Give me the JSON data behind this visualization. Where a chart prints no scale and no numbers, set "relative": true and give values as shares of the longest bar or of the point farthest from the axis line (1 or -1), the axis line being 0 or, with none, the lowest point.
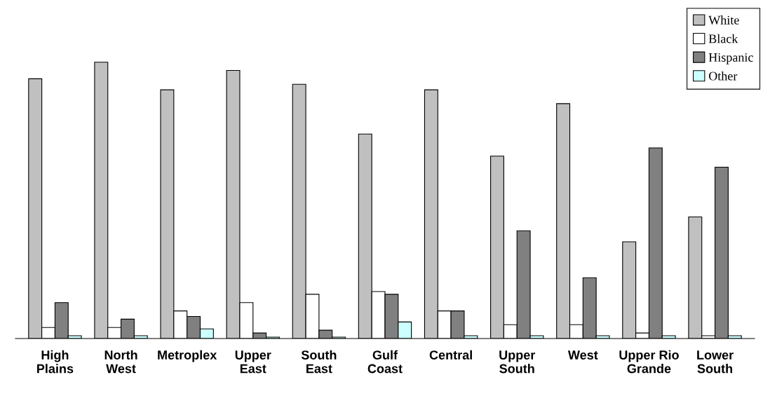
{
  "chart_data": {
    "type": "bar",
    "relative": true,
    "legend": "top right",
    "grid": false,
    "categories": [
      "High\nPlains",
      "North\nWest",
      "Metroplex",
      "Upper\nEast",
      "South\nEast",
      "Gulf\nCoast",
      "Central",
      "Upper\nSouth",
      "West",
      "Upper Rio\nGrande",
      "Lower\nSouth"
    ],
    "series": [
      {
        "name": "White",
        "color": "#c0c0c0",
        "values": [
          0.94,
          1.0,
          0.9,
          0.97,
          0.92,
          0.74,
          0.9,
          0.66,
          0.85,
          0.35,
          0.44
        ]
      },
      {
        "name": "Black",
        "color": "#ffffff",
        "values": [
          0.04,
          0.04,
          0.1,
          0.13,
          0.16,
          0.17,
          0.1,
          0.05,
          0.05,
          0.02,
          0.01
        ]
      },
      {
        "name": "Hispanic",
        "color": "#808080",
        "values": [
          0.13,
          0.07,
          0.08,
          0.02,
          0.03,
          0.16,
          0.1,
          0.39,
          0.22,
          0.69,
          0.62
        ]
      },
      {
        "name": "Other",
        "color": "#ccffff",
        "values": [
          0.01,
          0.01,
          0.035,
          0.005,
          0.005,
          0.06,
          0.01,
          0.01,
          0.01,
          0.01,
          0.01
        ]
      }
    ]
  }
}
